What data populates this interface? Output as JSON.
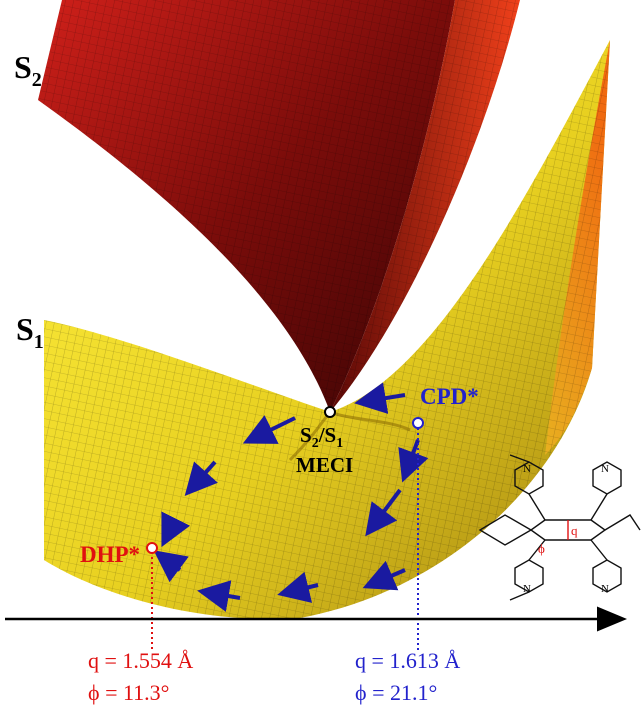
{
  "surfaces": [
    {
      "symbol": "S",
      "index": "2"
    },
    {
      "symbol": "S",
      "index": "1"
    }
  ],
  "meci": {
    "symbol": "S",
    "upper": "2",
    "separator": "/",
    "lower": "1",
    "name": "MECI"
  },
  "points": [
    {
      "label": "CPD*",
      "color": "#2222cc"
    },
    {
      "label": "DHP*",
      "color": "#e01010"
    }
  ],
  "coordinates": [
    {
      "q": "q = 1.554 Å",
      "phi": "ϕ = 11.3°",
      "color": "#e01010"
    },
    {
      "q": "q = 1.613 Å",
      "phi": "ϕ = 21.1°",
      "color": "#2222cc"
    }
  ],
  "molecule": {
    "q": "q",
    "phi": "ϕ",
    "atom": "N"
  }
}
